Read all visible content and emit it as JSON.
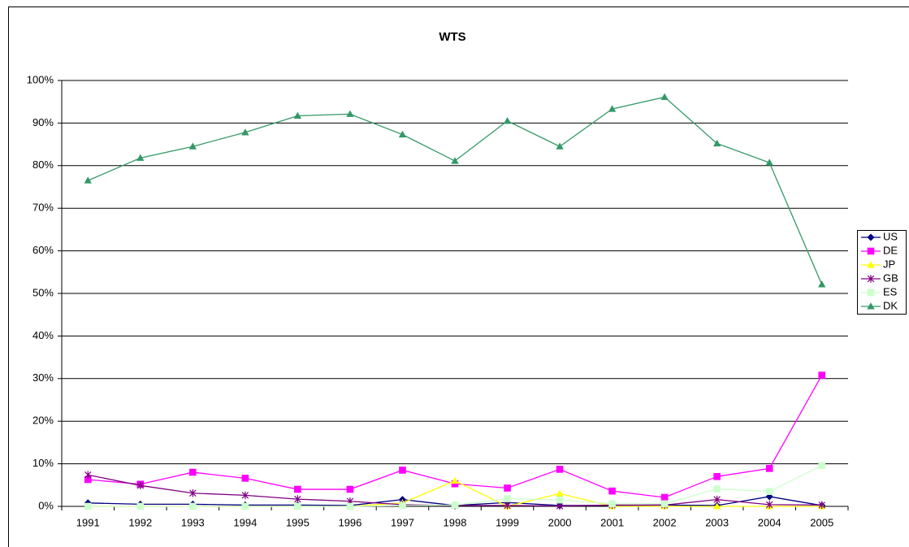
{
  "chart_data": {
    "type": "line",
    "title": "WTS",
    "categories": [
      "1991",
      "1992",
      "1993",
      "1994",
      "1995",
      "1996",
      "1997",
      "1998",
      "1999",
      "2000",
      "2001",
      "2002",
      "2003",
      "2004",
      "2005"
    ],
    "series": [
      {
        "name": "US",
        "color": "#000080",
        "marker": "diamond",
        "values": [
          0.8,
          0.5,
          0.5,
          0.3,
          0.3,
          0.2,
          1.6,
          0.2,
          0.9,
          0.2,
          0.2,
          0.3,
          0.2,
          2.3,
          0.2
        ]
      },
      {
        "name": "DE",
        "color": "#ff00ff",
        "marker": "square",
        "values": [
          6.3,
          5.2,
          8.0,
          6.6,
          4.0,
          4.0,
          8.5,
          5.3,
          4.3,
          8.7,
          3.6,
          2.1,
          7.0,
          8.9,
          30.8
        ]
      },
      {
        "name": "JP",
        "color": "#ffff00",
        "marker": "triangle",
        "values": [
          0,
          0,
          0,
          0,
          0,
          0,
          0.8,
          6.0,
          0,
          3.0,
          0,
          0,
          0,
          0,
          0
        ]
      },
      {
        "name": "GB",
        "color": "#800080",
        "marker": "star",
        "values": [
          7.4,
          4.9,
          3.1,
          2.6,
          1.7,
          1.2,
          0.4,
          0.2,
          0.2,
          0.1,
          0.3,
          0.3,
          1.6,
          0.4,
          0.3
        ]
      },
      {
        "name": "ES",
        "color": "#ccffcc",
        "marker": "square",
        "values": [
          0,
          0,
          0,
          0,
          0,
          0,
          0.2,
          0.3,
          1.8,
          1.5,
          0.6,
          0.6,
          4.1,
          3.5,
          9.6
        ]
      },
      {
        "name": "DK",
        "color": "#339966",
        "marker": "triangle",
        "values": [
          76.5,
          81.8,
          84.5,
          87.8,
          91.7,
          92.1,
          87.3,
          81.1,
          90.5,
          84.5,
          93.3,
          96.1,
          85.2,
          80.7,
          52.1
        ]
      }
    ],
    "ylim": [
      0,
      100
    ],
    "yticks": [
      {
        "value": 0,
        "label": "0%"
      },
      {
        "value": 10,
        "label": "10%"
      },
      {
        "value": 20,
        "label": "20%"
      },
      {
        "value": 30,
        "label": "30%"
      },
      {
        "value": 40,
        "label": "40%"
      },
      {
        "value": 50,
        "label": "50%"
      },
      {
        "value": 60,
        "label": "60%"
      },
      {
        "value": 70,
        "label": "70%"
      },
      {
        "value": 80,
        "label": "80%"
      },
      {
        "value": 90,
        "label": "90%"
      },
      {
        "value": 100,
        "label": "100%"
      }
    ],
    "grid": true,
    "legend": "right"
  }
}
